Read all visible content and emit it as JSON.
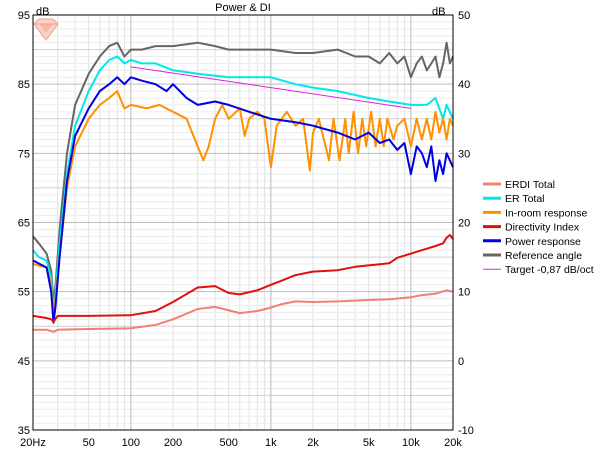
{
  "chart_data": {
    "type": "line",
    "title": "Power & DI",
    "left_unit": "dB",
    "right_unit": "dB",
    "xscale": "log",
    "xlim": [
      20,
      20000
    ],
    "ylim_left": [
      35,
      95
    ],
    "ylim_right": [
      -10,
      50
    ],
    "x_ticks": [
      {
        "value": 20,
        "label": "20Hz"
      },
      {
        "value": 50,
        "label": "50"
      },
      {
        "value": 100,
        "label": "100"
      },
      {
        "value": 200,
        "label": "200"
      },
      {
        "value": 500,
        "label": "500"
      },
      {
        "value": 1000,
        "label": "1k"
      },
      {
        "value": 2000,
        "label": "2k"
      },
      {
        "value": 5000,
        "label": "5k"
      },
      {
        "value": 10000,
        "label": "10k"
      },
      {
        "value": 20000,
        "label": "20k"
      }
    ],
    "y_ticks_left": [
      "95",
      "85",
      "75",
      "65",
      "55",
      "45",
      "35"
    ],
    "y_ticks_right": [
      "50",
      "40",
      "30",
      "20",
      "10",
      "0",
      "-10"
    ],
    "grid": true,
    "legend_position": "right",
    "series": [
      {
        "name": "ERDI Total",
        "color": "#f08070",
        "axis": "right",
        "points": [
          [
            20,
            4.5
          ],
          [
            25,
            4.5
          ],
          [
            28,
            4.2
          ],
          [
            30,
            4.5
          ],
          [
            50,
            4.6
          ],
          [
            100,
            4.7
          ],
          [
            150,
            5.2
          ],
          [
            200,
            6.0
          ],
          [
            300,
            7.5
          ],
          [
            400,
            7.8
          ],
          [
            600,
            6.9
          ],
          [
            800,
            7.2
          ],
          [
            1000,
            7.7
          ],
          [
            1200,
            8.2
          ],
          [
            1500,
            8.6
          ],
          [
            2000,
            8.5
          ],
          [
            3000,
            8.6
          ],
          [
            5000,
            8.8
          ],
          [
            7000,
            8.9
          ],
          [
            10000,
            9.2
          ],
          [
            12000,
            9.5
          ],
          [
            15000,
            9.7
          ],
          [
            18000,
            10.2
          ],
          [
            20000,
            10.0
          ]
        ]
      },
      {
        "name": "ER Total",
        "color": "#00e8e8",
        "axis": "left",
        "points": [
          [
            20,
            61
          ],
          [
            22,
            60
          ],
          [
            25,
            59.5
          ],
          [
            27,
            57
          ],
          [
            28,
            52
          ],
          [
            29,
            55
          ],
          [
            31,
            62
          ],
          [
            35,
            72
          ],
          [
            40,
            79
          ],
          [
            50,
            84
          ],
          [
            60,
            87
          ],
          [
            70,
            88.5
          ],
          [
            80,
            89
          ],
          [
            90,
            88
          ],
          [
            100,
            88.5
          ],
          [
            120,
            88
          ],
          [
            150,
            88
          ],
          [
            200,
            87
          ],
          [
            300,
            86.5
          ],
          [
            500,
            86
          ],
          [
            700,
            86
          ],
          [
            1000,
            86
          ],
          [
            1500,
            85
          ],
          [
            2000,
            84.5
          ],
          [
            3000,
            84
          ],
          [
            5000,
            83
          ],
          [
            7000,
            82.5
          ],
          [
            10000,
            82
          ],
          [
            13000,
            82
          ],
          [
            15000,
            83
          ],
          [
            17000,
            80
          ],
          [
            18000,
            82
          ],
          [
            20000,
            80
          ]
        ]
      },
      {
        "name": "In-room response",
        "color": "#ff9000",
        "axis": "left",
        "points": [
          [
            20,
            59
          ],
          [
            25,
            58.5
          ],
          [
            27,
            56
          ],
          [
            28,
            51
          ],
          [
            29,
            54
          ],
          [
            31,
            60
          ],
          [
            35,
            70
          ],
          [
            40,
            76
          ],
          [
            50,
            80
          ],
          [
            60,
            82
          ],
          [
            70,
            83
          ],
          [
            80,
            84
          ],
          [
            90,
            81.5
          ],
          [
            100,
            82
          ],
          [
            130,
            81.5
          ],
          [
            160,
            82
          ],
          [
            200,
            81
          ],
          [
            250,
            80
          ],
          [
            300,
            76
          ],
          [
            330,
            74
          ],
          [
            360,
            76
          ],
          [
            400,
            80
          ],
          [
            450,
            82
          ],
          [
            500,
            80
          ],
          [
            600,
            81.5
          ],
          [
            650,
            77.5
          ],
          [
            700,
            80
          ],
          [
            800,
            81
          ],
          [
            900,
            80
          ],
          [
            1000,
            73
          ],
          [
            1100,
            79
          ],
          [
            1300,
            81
          ],
          [
            1500,
            79
          ],
          [
            1700,
            80
          ],
          [
            1900,
            72.5
          ],
          [
            2000,
            78
          ],
          [
            2200,
            80
          ],
          [
            2600,
            74
          ],
          [
            2800,
            80
          ],
          [
            3100,
            74
          ],
          [
            3400,
            80
          ],
          [
            3600,
            75
          ],
          [
            3900,
            81
          ],
          [
            4200,
            75
          ],
          [
            4500,
            80
          ],
          [
            4800,
            76
          ],
          [
            5200,
            81
          ],
          [
            5600,
            76
          ],
          [
            6000,
            80
          ],
          [
            6400,
            76
          ],
          [
            6800,
            80
          ],
          [
            7500,
            77
          ],
          [
            8000,
            79
          ],
          [
            9000,
            80
          ],
          [
            10000,
            76
          ],
          [
            11000,
            80
          ],
          [
            12000,
            77
          ],
          [
            13000,
            80
          ],
          [
            14000,
            77
          ],
          [
            15000,
            81
          ],
          [
            16000,
            78
          ],
          [
            17000,
            80
          ],
          [
            18000,
            77
          ],
          [
            19000,
            80
          ],
          [
            20000,
            79
          ]
        ]
      },
      {
        "name": "Directivity Index",
        "color": "#e01010",
        "axis": "right",
        "points": [
          [
            20,
            6.5
          ],
          [
            25,
            6.2
          ],
          [
            27,
            6.0
          ],
          [
            28,
            5.6
          ],
          [
            29,
            6.1
          ],
          [
            30,
            6.5
          ],
          [
            50,
            6.5
          ],
          [
            100,
            6.6
          ],
          [
            150,
            7.2
          ],
          [
            200,
            8.5
          ],
          [
            300,
            10.6
          ],
          [
            400,
            10.8
          ],
          [
            500,
            9.8
          ],
          [
            600,
            9.6
          ],
          [
            800,
            10.2
          ],
          [
            1000,
            11.0
          ],
          [
            1200,
            11.6
          ],
          [
            1500,
            12.4
          ],
          [
            2000,
            12.9
          ],
          [
            3000,
            13.1
          ],
          [
            4000,
            13.6
          ],
          [
            5000,
            13.8
          ],
          [
            7000,
            14.1
          ],
          [
            8000,
            14.9
          ],
          [
            10000,
            15.5
          ],
          [
            12000,
            16.0
          ],
          [
            15000,
            16.6
          ],
          [
            17000,
            17.0
          ],
          [
            18000,
            17.8
          ],
          [
            19000,
            18.2
          ],
          [
            20000,
            17.6
          ]
        ]
      },
      {
        "name": "Power response",
        "color": "#0000e0",
        "axis": "left",
        "points": [
          [
            20,
            59.5
          ],
          [
            25,
            58.5
          ],
          [
            27,
            55
          ],
          [
            28,
            50.5
          ],
          [
            29,
            53
          ],
          [
            31,
            60
          ],
          [
            35,
            71
          ],
          [
            40,
            77.5
          ],
          [
            50,
            81.5
          ],
          [
            60,
            84
          ],
          [
            70,
            85
          ],
          [
            80,
            86
          ],
          [
            90,
            85
          ],
          [
            100,
            86
          ],
          [
            120,
            85.5
          ],
          [
            150,
            85
          ],
          [
            180,
            84
          ],
          [
            200,
            85
          ],
          [
            250,
            83
          ],
          [
            300,
            82
          ],
          [
            400,
            82.5
          ],
          [
            500,
            82
          ],
          [
            700,
            81
          ],
          [
            1000,
            80
          ],
          [
            1500,
            79.5
          ],
          [
            2000,
            79
          ],
          [
            3000,
            78
          ],
          [
            4000,
            77
          ],
          [
            5000,
            78
          ],
          [
            6000,
            76.5
          ],
          [
            7000,
            77
          ],
          [
            8000,
            75.5
          ],
          [
            9000,
            76.5
          ],
          [
            10000,
            72
          ],
          [
            11000,
            76
          ],
          [
            12000,
            75
          ],
          [
            13000,
            73
          ],
          [
            14000,
            76
          ],
          [
            15000,
            71
          ],
          [
            16000,
            74
          ],
          [
            17000,
            72
          ],
          [
            18000,
            75
          ],
          [
            20000,
            73
          ]
        ]
      },
      {
        "name": "Reference angle",
        "color": "#666666",
        "axis": "left",
        "points": [
          [
            20,
            63
          ],
          [
            22,
            62
          ],
          [
            25,
            60.5
          ],
          [
            27,
            58
          ],
          [
            28,
            53.5
          ],
          [
            29,
            56
          ],
          [
            31,
            64
          ],
          [
            35,
            75
          ],
          [
            40,
            82
          ],
          [
            50,
            86.5
          ],
          [
            60,
            89
          ],
          [
            70,
            90.5
          ],
          [
            80,
            91
          ],
          [
            90,
            89
          ],
          [
            100,
            90
          ],
          [
            120,
            90
          ],
          [
            150,
            90.5
          ],
          [
            200,
            90.5
          ],
          [
            300,
            91
          ],
          [
            400,
            90.5
          ],
          [
            500,
            90
          ],
          [
            700,
            90
          ],
          [
            1000,
            90
          ],
          [
            1500,
            89.5
          ],
          [
            2000,
            89.5
          ],
          [
            3000,
            90
          ],
          [
            4000,
            89
          ],
          [
            5000,
            89
          ],
          [
            6000,
            88
          ],
          [
            7000,
            89.5
          ],
          [
            8000,
            88
          ],
          [
            9000,
            89
          ],
          [
            10000,
            86
          ],
          [
            11000,
            88
          ],
          [
            12000,
            89
          ],
          [
            13000,
            87
          ],
          [
            14000,
            88
          ],
          [
            15000,
            89
          ],
          [
            16000,
            86
          ],
          [
            17000,
            88
          ],
          [
            18000,
            91
          ],
          [
            19000,
            88
          ],
          [
            20000,
            89
          ]
        ]
      },
      {
        "name": "Target -0,87 dB/oct",
        "color": "#e020e0",
        "axis": "left",
        "points": [
          [
            100,
            87.5
          ],
          [
            10000,
            81.5
          ]
        ]
      }
    ],
    "watermark": "logo"
  }
}
